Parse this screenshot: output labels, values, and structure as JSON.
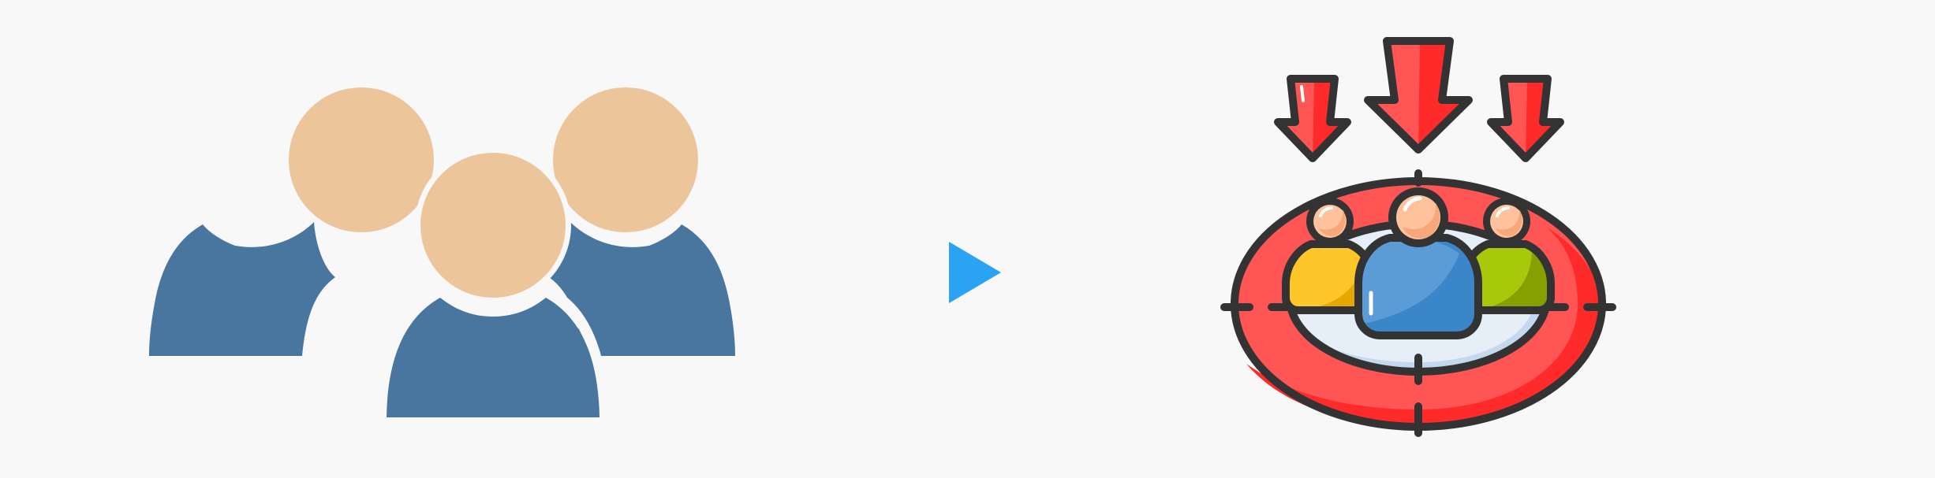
{
  "illustration": {
    "left_icon": "users-group-icon",
    "center_icon": "play-arrow-icon",
    "right_icon": "target-audience-icon"
  },
  "colors": {
    "background": "#f8f8f8",
    "user_head": "#ecc59b",
    "user_body": "#48769f",
    "arrow_blue": "#2aa3f4",
    "target_red": "#ff5555",
    "target_red_dark": "#ff2a2a",
    "target_inner": "#e6eef7",
    "target_inner_shade": "#c4d8ee",
    "outline": "#333333",
    "person_yellow": "#ffc629",
    "person_blue": "#3a86c8",
    "person_green": "#a8c80a",
    "face": "#ffc29c"
  }
}
